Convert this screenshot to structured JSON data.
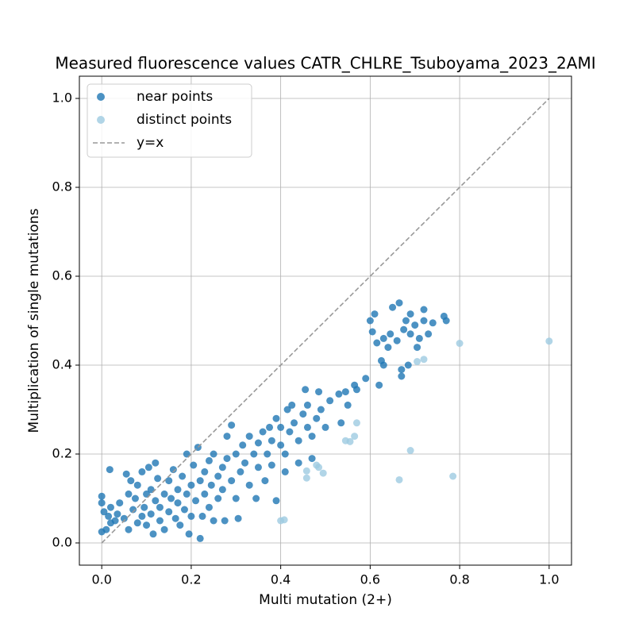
{
  "chart_data": {
    "type": "scatter",
    "title": "Measured fluorescence values CATR_CHLRE_Tsuboyama_2023_2AMI",
    "x_label": "Multi mutation (2+)",
    "y_label": "Multiplication of single mutations",
    "xlim": [
      -0.05,
      1.05
    ],
    "ylim": [
      -0.05,
      1.05
    ],
    "xticks": [
      {
        "value": 0,
        "label": "0.0"
      },
      0.2,
      0.4,
      0.6,
      0.8,
      {
        "value": 1,
        "label": "1.0"
      }
    ],
    "yticks": [
      {
        "value": 0,
        "label": "0.0"
      },
      0.2,
      0.4,
      0.6,
      0.8,
      {
        "value": 1,
        "label": "1.0"
      }
    ],
    "grid": true,
    "legend": "upper left",
    "series": [
      {
        "name": "near points",
        "color": "#1f77b4",
        "x": [
          0.0,
          0.0,
          0.0,
          0.005,
          0.01,
          0.015,
          0.02,
          0.02,
          0.018,
          0.03,
          0.035,
          0.04,
          0.05,
          0.055,
          0.06,
          0.06,
          0.065,
          0.07,
          0.075,
          0.08,
          0.08,
          0.09,
          0.09,
          0.095,
          0.1,
          0.1,
          0.105,
          0.11,
          0.11,
          0.115,
          0.12,
          0.12,
          0.125,
          0.13,
          0.13,
          0.14,
          0.14,
          0.15,
          0.15,
          0.155,
          0.16,
          0.165,
          0.17,
          0.17,
          0.175,
          0.18,
          0.185,
          0.19,
          0.19,
          0.195,
          0.2,
          0.2,
          0.205,
          0.21,
          0.215,
          0.22,
          0.22,
          0.225,
          0.23,
          0.23,
          0.24,
          0.24,
          0.245,
          0.25,
          0.25,
          0.26,
          0.26,
          0.27,
          0.27,
          0.275,
          0.28,
          0.28,
          0.29,
          0.29,
          0.3,
          0.3,
          0.305,
          0.31,
          0.315,
          0.32,
          0.33,
          0.33,
          0.34,
          0.345,
          0.35,
          0.35,
          0.36,
          0.365,
          0.37,
          0.375,
          0.38,
          0.38,
          0.39,
          0.39,
          0.4,
          0.4,
          0.41,
          0.41,
          0.415,
          0.42,
          0.425,
          0.43,
          0.44,
          0.44,
          0.45,
          0.455,
          0.46,
          0.46,
          0.47,
          0.47,
          0.48,
          0.485,
          0.49,
          0.5,
          0.51,
          0.53,
          0.535,
          0.545,
          0.55,
          0.565,
          0.57,
          0.59,
          0.6,
          0.605,
          0.61,
          0.615,
          0.62,
          0.625,
          0.63,
          0.63,
          0.64,
          0.645,
          0.65,
          0.66,
          0.665,
          0.67,
          0.67,
          0.675,
          0.68,
          0.685,
          0.69,
          0.69,
          0.7,
          0.705,
          0.71,
          0.72,
          0.72,
          0.73,
          0.74,
          0.765,
          0.77
        ],
        "y": [
          0.025,
          0.09,
          0.105,
          0.07,
          0.03,
          0.06,
          0.08,
          0.045,
          0.165,
          0.05,
          0.065,
          0.09,
          0.055,
          0.155,
          0.11,
          0.03,
          0.14,
          0.075,
          0.1,
          0.13,
          0.045,
          0.06,
          0.16,
          0.08,
          0.11,
          0.04,
          0.17,
          0.12,
          0.065,
          0.02,
          0.095,
          0.18,
          0.145,
          0.05,
          0.08,
          0.11,
          0.03,
          0.14,
          0.07,
          0.1,
          0.165,
          0.055,
          0.12,
          0.09,
          0.04,
          0.15,
          0.075,
          0.2,
          0.11,
          0.02,
          0.13,
          0.06,
          0.175,
          0.095,
          0.215,
          0.14,
          0.01,
          0.06,
          0.16,
          0.11,
          0.185,
          0.08,
          0.13,
          0.05,
          0.2,
          0.15,
          0.1,
          0.17,
          0.12,
          0.05,
          0.24,
          0.19,
          0.14,
          0.265,
          0.2,
          0.1,
          0.055,
          0.16,
          0.22,
          0.18,
          0.24,
          0.13,
          0.2,
          0.1,
          0.17,
          0.225,
          0.25,
          0.14,
          0.2,
          0.26,
          0.23,
          0.175,
          0.095,
          0.28,
          0.22,
          0.26,
          0.2,
          0.16,
          0.3,
          0.25,
          0.31,
          0.27,
          0.23,
          0.18,
          0.29,
          0.345,
          0.26,
          0.31,
          0.24,
          0.19,
          0.28,
          0.34,
          0.3,
          0.26,
          0.32,
          0.335,
          0.27,
          0.34,
          0.31,
          0.355,
          0.345,
          0.37,
          0.5,
          0.475,
          0.515,
          0.45,
          0.355,
          0.41,
          0.4,
          0.46,
          0.44,
          0.47,
          0.53,
          0.455,
          0.54,
          0.39,
          0.375,
          0.48,
          0.5,
          0.4,
          0.47,
          0.515,
          0.49,
          0.44,
          0.46,
          0.5,
          0.525,
          0.47,
          0.495,
          0.51,
          0.5
        ]
      },
      {
        "name": "distinct points",
        "color": "#9ecae1",
        "x": [
          1.0,
          0.8,
          0.785,
          0.69,
          0.545,
          0.555,
          0.565,
          0.57,
          0.72,
          0.705,
          0.665,
          0.458,
          0.458,
          0.48,
          0.485,
          0.495,
          0.4,
          0.408
        ],
        "y": [
          0.454,
          0.449,
          0.15,
          0.208,
          0.23,
          0.228,
          0.24,
          0.27,
          0.413,
          0.408,
          0.142,
          0.162,
          0.146,
          0.175,
          0.17,
          0.157,
          0.05,
          0.052
        ]
      }
    ],
    "reference_line": {
      "name": "y=x",
      "color": "#999999",
      "x": [
        0,
        1
      ],
      "y": [
        0,
        1
      ]
    }
  }
}
